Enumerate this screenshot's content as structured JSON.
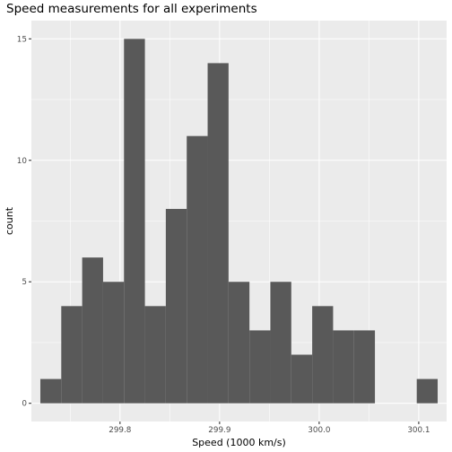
{
  "chart_data": {
    "type": "bar",
    "title": "Speed measurements for all experiments",
    "xlabel": "Speed (1000 km/s)",
    "ylabel": "count",
    "bin_width": 0.021,
    "bins": [
      {
        "x0": 299.72,
        "x1": 299.741,
        "count": 1
      },
      {
        "x0": 299.741,
        "x1": 299.762,
        "count": 4
      },
      {
        "x0": 299.762,
        "x1": 299.783,
        "count": 6
      },
      {
        "x0": 299.783,
        "x1": 299.804,
        "count": 5
      },
      {
        "x0": 299.804,
        "x1": 299.825,
        "count": 15
      },
      {
        "x0": 299.825,
        "x1": 299.846,
        "count": 4
      },
      {
        "x0": 299.846,
        "x1": 299.867,
        "count": 8
      },
      {
        "x0": 299.867,
        "x1": 299.888,
        "count": 11
      },
      {
        "x0": 299.888,
        "x1": 299.909,
        "count": 14
      },
      {
        "x0": 299.909,
        "x1": 299.93,
        "count": 5
      },
      {
        "x0": 299.93,
        "x1": 299.951,
        "count": 3
      },
      {
        "x0": 299.951,
        "x1": 299.972,
        "count": 5
      },
      {
        "x0": 299.972,
        "x1": 299.993,
        "count": 2
      },
      {
        "x0": 299.993,
        "x1": 300.014,
        "count": 4
      },
      {
        "x0": 300.014,
        "x1": 300.035,
        "count": 3
      },
      {
        "x0": 300.035,
        "x1": 300.056,
        "count": 3
      },
      {
        "x0": 300.056,
        "x1": 300.077,
        "count": 0
      },
      {
        "x0": 300.077,
        "x1": 300.098,
        "count": 0
      },
      {
        "x0": 300.098,
        "x1": 300.119,
        "count": 1
      }
    ],
    "xlim": [
      299.711,
      300.128
    ],
    "ylim": [
      -0.75,
      15.75
    ],
    "x_ticks": [
      299.8,
      299.9,
      300.0,
      300.1
    ],
    "x_tick_labels": [
      "299.8",
      "299.9",
      "300.0",
      "300.1"
    ],
    "y_ticks": [
      0,
      5,
      10,
      15
    ],
    "y_tick_labels": [
      "0",
      "5",
      "10",
      "15"
    ],
    "grid": true,
    "colors": {
      "panel": "#ebebeb",
      "grid_major": "#ffffff",
      "bar_fill": "#595959",
      "tick_text": "#4d4d4d"
    }
  }
}
